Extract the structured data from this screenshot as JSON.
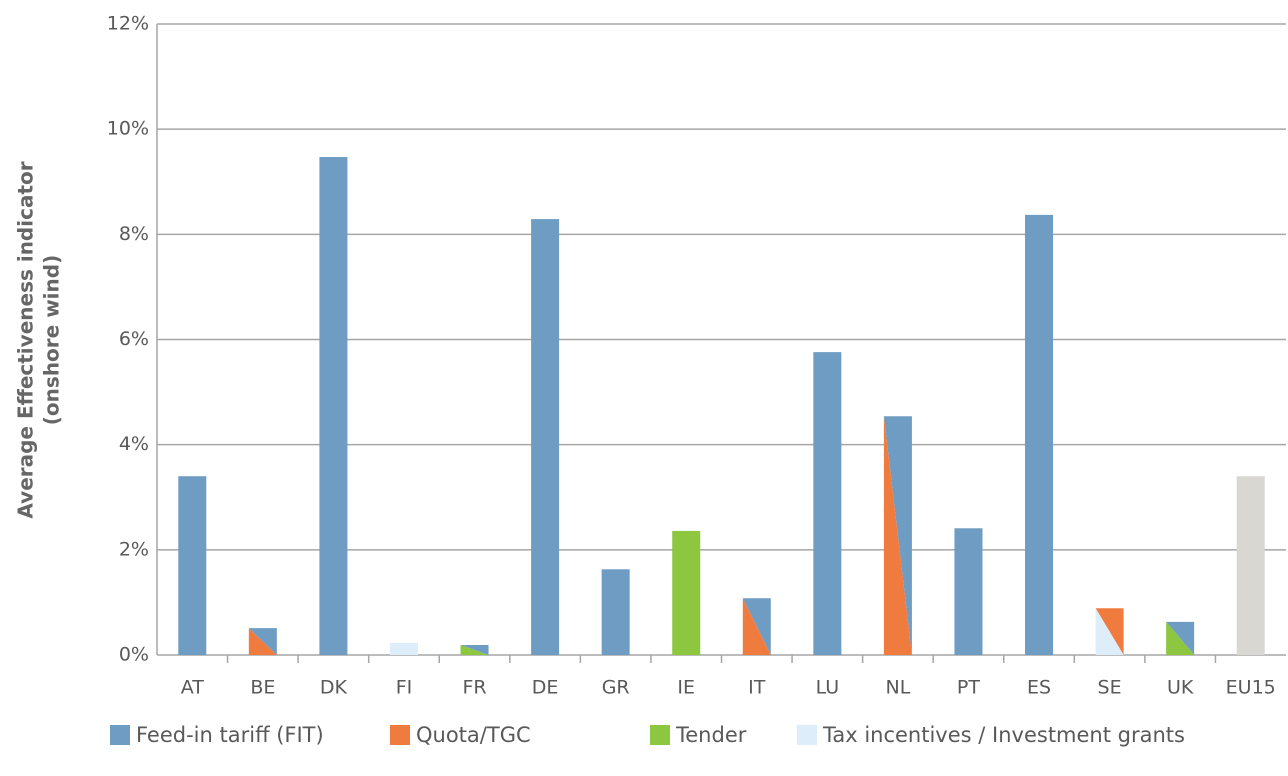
{
  "chart_data": {
    "type": "bar",
    "y_label": [
      "Average Effectiveness indicator",
      "(onshore wind)"
    ],
    "categories": [
      "AT",
      "BE",
      "DK",
      "FI",
      "FR",
      "DE",
      "GR",
      "IE",
      "IT",
      "LU",
      "NL",
      "PT",
      "ES",
      "SE",
      "UK",
      "EU15"
    ],
    "values": [
      3.4,
      0.51,
      9.47,
      0.23,
      0.19,
      8.29,
      1.63,
      2.36,
      1.08,
      5.76,
      4.54,
      2.41,
      8.37,
      0.89,
      0.63,
      3.4
    ],
    "bar_colors": [
      [
        "#6e9cc3"
      ],
      [
        "#6e9cc3",
        "#f07b3f"
      ],
      [
        "#6e9cc3"
      ],
      [
        "#ddeefa"
      ],
      [
        "#6e9cc3",
        "#8dc63f"
      ],
      [
        "#6e9cc3"
      ],
      [
        "#6e9cc3"
      ],
      [
        "#8dc63f"
      ],
      [
        "#6e9cc3",
        "#f07b3f"
      ],
      [
        "#6e9cc3"
      ],
      [
        "#6e9cc3",
        "#f07b3f"
      ],
      [
        "#6e9cc3"
      ],
      [
        "#6e9cc3"
      ],
      [
        "#f07b3f",
        "#ddeefa"
      ],
      [
        "#6e9cc3",
        "#8dc63f"
      ],
      [
        "#d9d7d2"
      ]
    ],
    "ylim": [
      0,
      12
    ],
    "yticks": [
      {
        "value": 0,
        "label": "0%"
      },
      {
        "value": 2,
        "label": "2%"
      },
      {
        "value": 4,
        "label": "4%"
      },
      {
        "value": 6,
        "label": "6%"
      },
      {
        "value": 8,
        "label": "8%"
      },
      {
        "value": 10,
        "label": "10%"
      },
      {
        "value": 12,
        "label": "12%"
      }
    ],
    "grid": true,
    "legend": [
      {
        "name": "Feed-in tariff (FIT)",
        "color": "#6e9cc3"
      },
      {
        "name": "Quota/TGC",
        "color": "#f07b3f"
      },
      {
        "name": "Tender",
        "color": "#8dc63f"
      },
      {
        "name": "Tax incentives / Investment grants",
        "color": "#ddeefa"
      }
    ]
  }
}
